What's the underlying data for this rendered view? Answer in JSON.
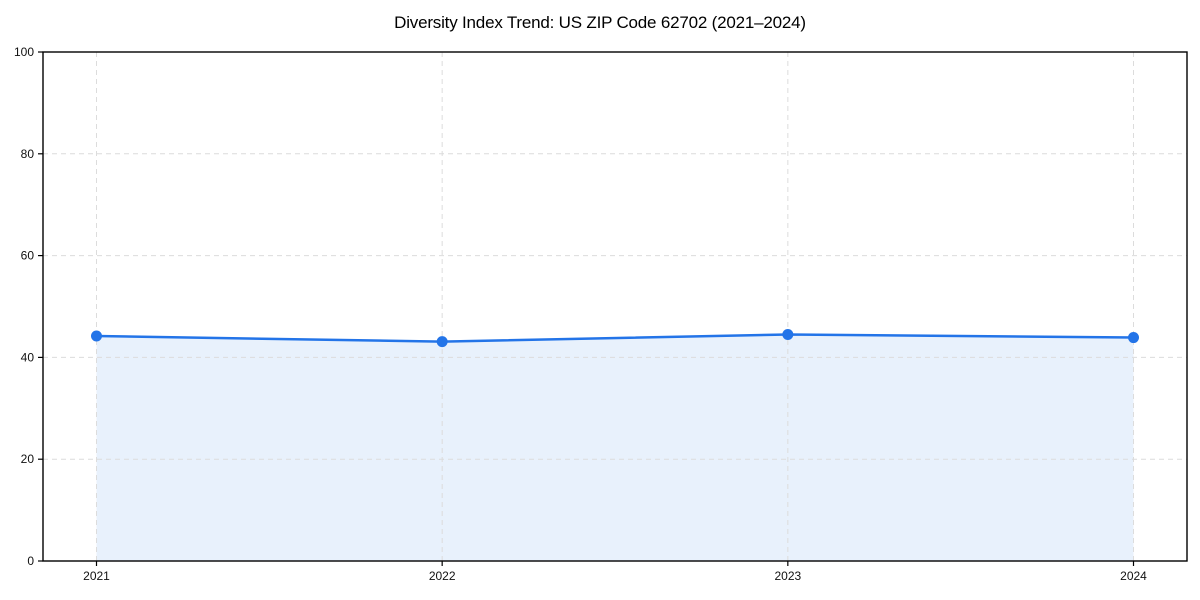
{
  "chart_data": {
    "type": "area",
    "title": "Diversity Index Trend: US ZIP Code 62702 (2021–2024)",
    "x": [
      2021,
      2022,
      2023,
      2024
    ],
    "xticks": [
      2021,
      2022,
      2023,
      2024
    ],
    "series": [
      {
        "name": "Diversity Index",
        "values": [
          44.2,
          43.1,
          44.5,
          43.9
        ]
      }
    ],
    "xlabel": "",
    "ylabel": "",
    "ylim": [
      0,
      100
    ],
    "yticks": [
      0,
      20,
      40,
      60,
      80,
      100
    ],
    "grid": true,
    "grid_style": "dashed",
    "legend_position": "none",
    "line_color": "#2374e8",
    "marker_color": "#2374e8",
    "fill_color": "#e8f1fc",
    "grid_color": "#dcdcdc",
    "axis_color": "#000000"
  }
}
